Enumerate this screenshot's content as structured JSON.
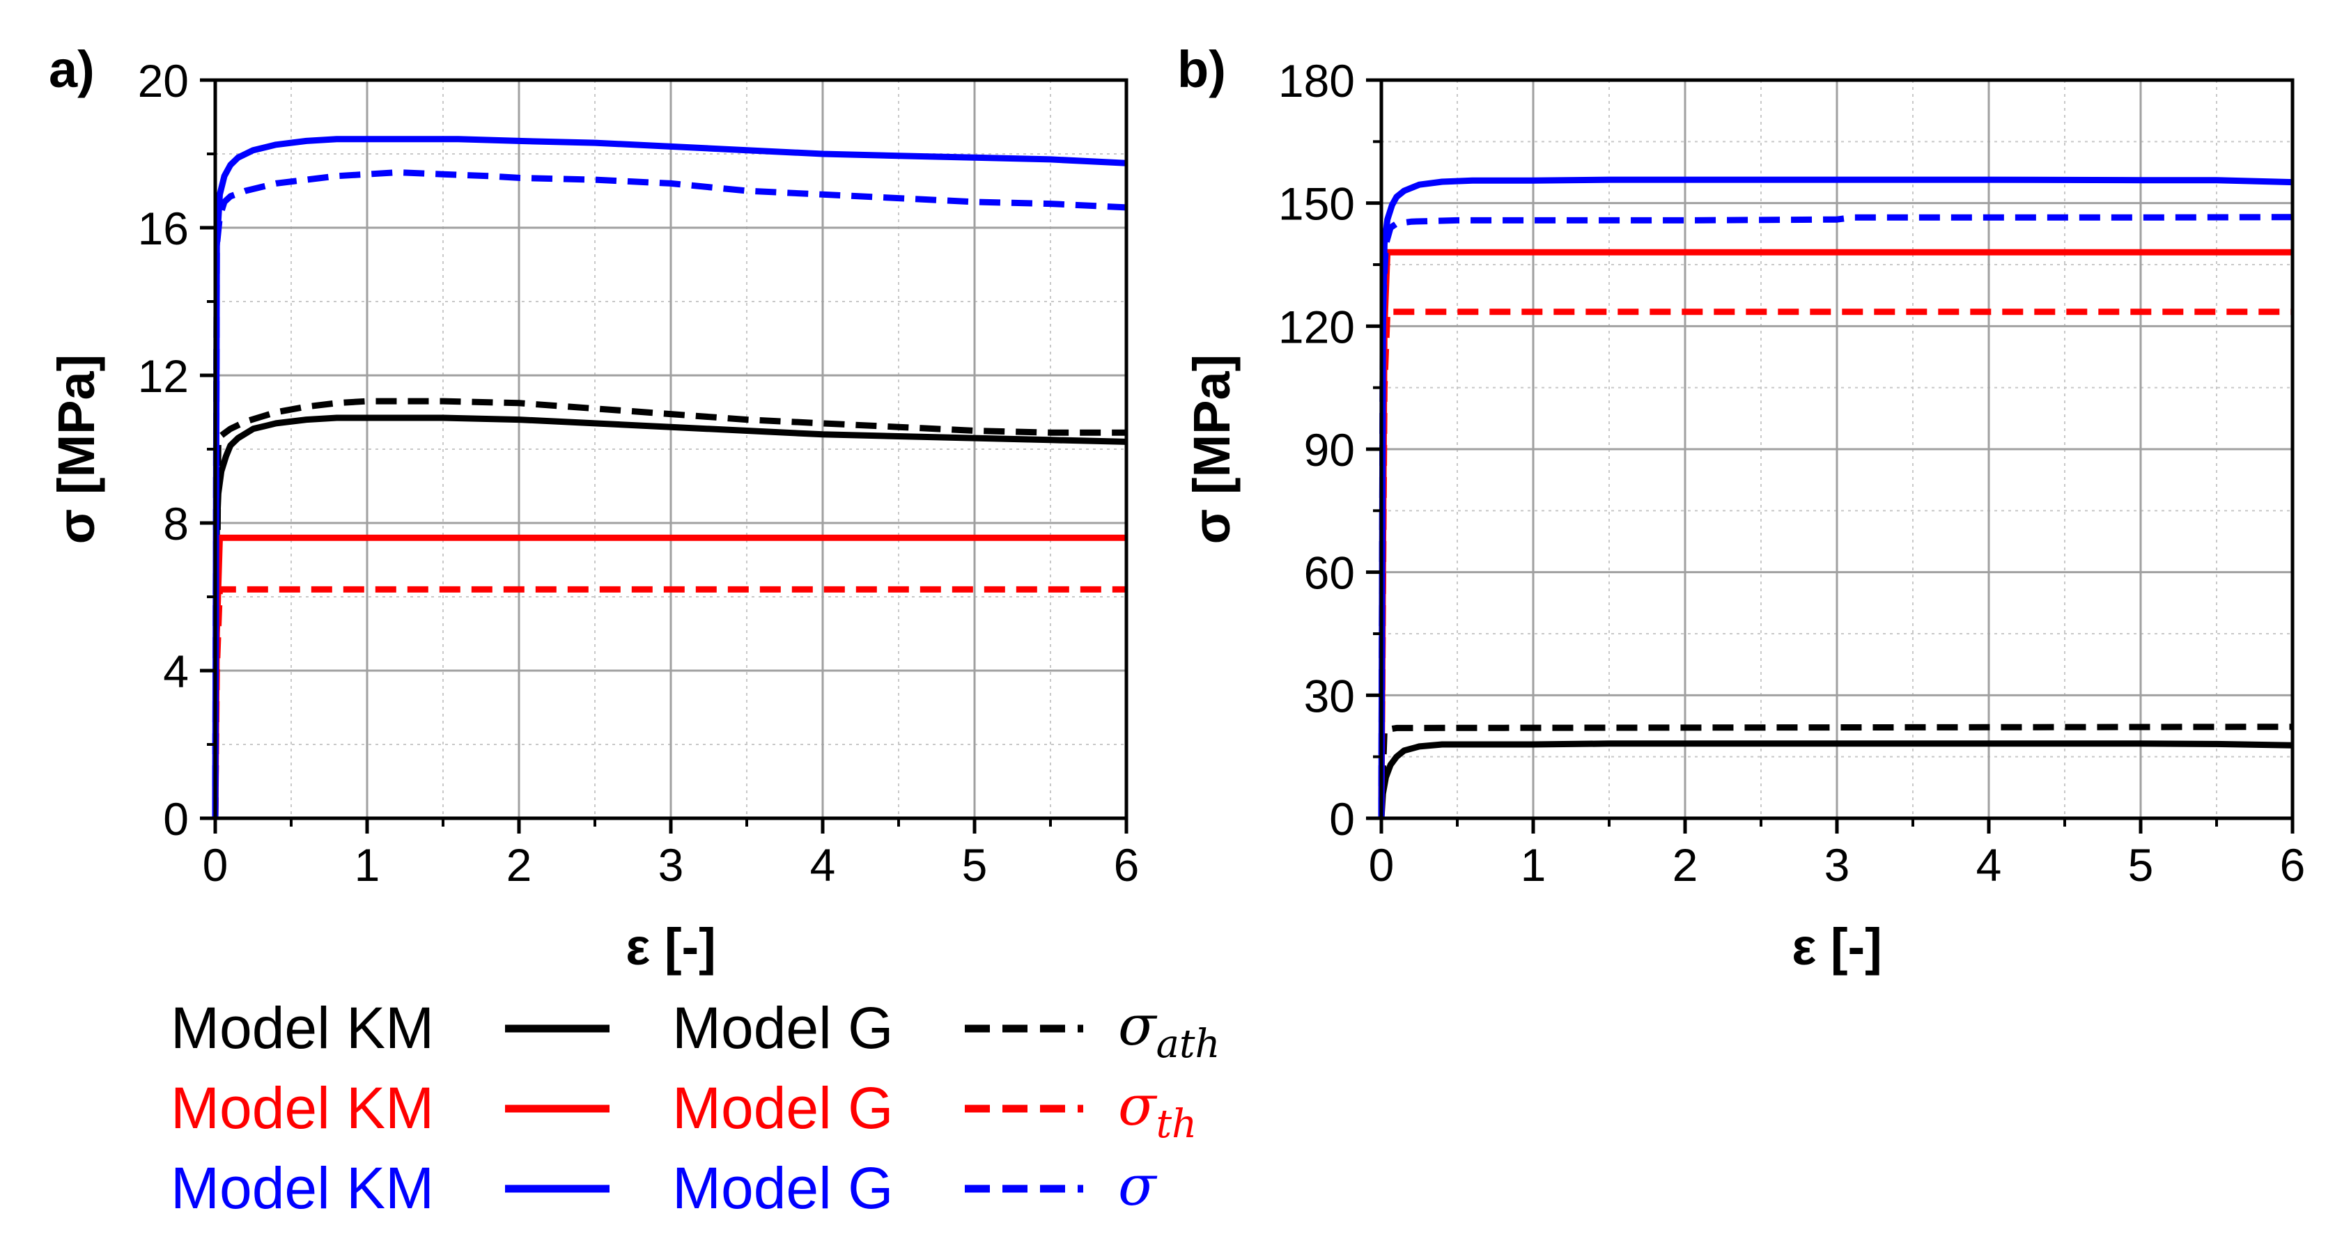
{
  "chart_data": [
    {
      "type": "line",
      "panel_label": "a)",
      "xlabel": "ε [-]",
      "ylabel": "σ [MPa]",
      "xlim": [
        0,
        6
      ],
      "ylim": [
        0,
        20
      ],
      "xticks": [
        "0",
        "1",
        "2",
        "3",
        "4",
        "5",
        "6"
      ],
      "yticks": [
        "0",
        "4",
        "8",
        "12",
        "16",
        "20"
      ],
      "xtick_values": [
        0,
        1,
        2,
        3,
        4,
        5,
        6
      ],
      "ytick_values": [
        0,
        4,
        8,
        12,
        16,
        20
      ],
      "grid": true,
      "series": [
        {
          "name": "Model KM σ_ath",
          "color": "#000000",
          "style": "solid",
          "x": [
            0,
            0.01,
            0.02,
            0.04,
            0.07,
            0.1,
            0.15,
            0.25,
            0.4,
            0.6,
            0.8,
            1.0,
            1.5,
            2.0,
            2.5,
            3.0,
            3.5,
            4.0,
            4.5,
            5.0,
            5.5,
            6.0
          ],
          "y": [
            0,
            7.8,
            8.8,
            9.4,
            9.8,
            10.1,
            10.3,
            10.55,
            10.7,
            10.8,
            10.85,
            10.85,
            10.85,
            10.8,
            10.7,
            10.6,
            10.5,
            10.4,
            10.35,
            10.3,
            10.25,
            10.2
          ]
        },
        {
          "name": "Model G σ_ath",
          "color": "#000000",
          "style": "dashed",
          "x": [
            0,
            0.02,
            0.05,
            0.1,
            0.2,
            0.4,
            0.6,
            0.8,
            1.0,
            1.5,
            2.0,
            2.5,
            3.0,
            3.5,
            4.0,
            4.5,
            5.0,
            5.5,
            6.0
          ],
          "y": [
            0,
            10.3,
            10.4,
            10.55,
            10.75,
            11.0,
            11.15,
            11.25,
            11.3,
            11.3,
            11.25,
            11.1,
            10.95,
            10.8,
            10.7,
            10.6,
            10.5,
            10.45,
            10.45
          ]
        },
        {
          "name": "Model KM σ_th",
          "color": "#ff0000",
          "style": "solid",
          "x": [
            0,
            0.01,
            0.03,
            6.0
          ],
          "y": [
            0,
            5.0,
            7.6,
            7.6
          ]
        },
        {
          "name": "Model G σ_th",
          "color": "#ff0000",
          "style": "dashed",
          "x": [
            0,
            0.01,
            0.03,
            6.0
          ],
          "y": [
            0,
            4.0,
            6.2,
            6.2
          ]
        },
        {
          "name": "Model KM σ",
          "color": "#0000ff",
          "style": "solid",
          "x": [
            0,
            0.01,
            0.03,
            0.06,
            0.1,
            0.15,
            0.25,
            0.4,
            0.6,
            0.8,
            1.0,
            1.3,
            1.6,
            2.0,
            2.5,
            3.0,
            3.5,
            4.0,
            4.5,
            5.0,
            5.5,
            6.0
          ],
          "y": [
            0,
            15.5,
            16.9,
            17.4,
            17.7,
            17.9,
            18.1,
            18.25,
            18.35,
            18.4,
            18.4,
            18.4,
            18.4,
            18.35,
            18.3,
            18.2,
            18.1,
            18.0,
            17.95,
            17.9,
            17.85,
            17.75
          ]
        },
        {
          "name": "Model G σ",
          "color": "#0000ff",
          "style": "dashed",
          "x": [
            0,
            0.01,
            0.03,
            0.06,
            0.1,
            0.2,
            0.4,
            0.6,
            0.8,
            1.0,
            1.2,
            1.5,
            1.8,
            2.0,
            2.5,
            3.0,
            3.5,
            4.0,
            4.5,
            5.0,
            5.5,
            6.0
          ],
          "y": [
            0,
            15.5,
            16.3,
            16.7,
            16.85,
            17.0,
            17.2,
            17.3,
            17.4,
            17.45,
            17.5,
            17.45,
            17.4,
            17.35,
            17.3,
            17.2,
            17.0,
            16.9,
            16.8,
            16.7,
            16.65,
            16.55
          ]
        }
      ]
    },
    {
      "type": "line",
      "panel_label": "b)",
      "xlabel": "ε [-]",
      "ylabel": "σ [MPa]",
      "xlim": [
        0,
        6
      ],
      "ylim": [
        0,
        180
      ],
      "xticks": [
        "0",
        "1",
        "2",
        "3",
        "4",
        "5",
        "6"
      ],
      "yticks": [
        "0",
        "30",
        "60",
        "90",
        "120",
        "150",
        "180"
      ],
      "xtick_values": [
        0,
        1,
        2,
        3,
        4,
        5,
        6
      ],
      "ytick_values": [
        0,
        30,
        60,
        90,
        120,
        150,
        180
      ],
      "grid": true,
      "series": [
        {
          "name": "Model KM σ_ath",
          "color": "#000000",
          "style": "solid",
          "x": [
            0,
            0.01,
            0.03,
            0.06,
            0.1,
            0.15,
            0.25,
            0.4,
            0.6,
            1.0,
            1.5,
            2.0,
            3.0,
            4.0,
            5.0,
            5.5,
            6.0
          ],
          "y": [
            0,
            6,
            10,
            13,
            15,
            16.5,
            17.5,
            18,
            18,
            18,
            18.2,
            18.2,
            18.2,
            18.2,
            18.2,
            18.1,
            17.8
          ]
        },
        {
          "name": "Model G σ_ath",
          "color": "#000000",
          "style": "dashed",
          "x": [
            0,
            0.02,
            0.1,
            6.0
          ],
          "y": [
            0,
            21.5,
            22,
            22.3
          ]
        },
        {
          "name": "Model KM σ_th",
          "color": "#ff0000",
          "style": "solid",
          "x": [
            0,
            0.02,
            0.04,
            6.0
          ],
          "y": [
            0,
            120,
            138,
            138
          ]
        },
        {
          "name": "Model G σ_th",
          "color": "#ff0000",
          "style": "dashed",
          "x": [
            0,
            0.02,
            0.04,
            6.0
          ],
          "y": [
            0,
            105,
            123.5,
            123.5
          ]
        },
        {
          "name": "Model KM σ",
          "color": "#0000ff",
          "style": "solid",
          "x": [
            0,
            0.01,
            0.02,
            0.04,
            0.07,
            0.1,
            0.15,
            0.25,
            0.4,
            0.6,
            1.0,
            1.5,
            2.0,
            3.0,
            4.0,
            5.0,
            5.5,
            6.0
          ],
          "y": [
            0,
            120,
            140,
            146,
            149.5,
            151.5,
            153,
            154.5,
            155.2,
            155.5,
            155.5,
            155.7,
            155.7,
            155.7,
            155.7,
            155.6,
            155.6,
            155.1
          ]
        },
        {
          "name": "Model G σ",
          "color": "#0000ff",
          "style": "dashed",
          "x": [
            0,
            0.01,
            0.03,
            0.06,
            0.1,
            0.2,
            0.5,
            1.0,
            2.0,
            3.0,
            3.1,
            4.0,
            5.0,
            6.0
          ],
          "y": [
            0,
            125,
            140,
            144,
            145,
            145.5,
            145.8,
            145.8,
            145.8,
            146,
            146.5,
            146.5,
            146.5,
            146.6
          ]
        }
      ]
    }
  ],
  "legend": {
    "rows": [
      {
        "km_label": "Model KM",
        "g_label": "Model G",
        "symbol": "σ",
        "subscript": "ath",
        "color": "#000000"
      },
      {
        "km_label": "Model KM",
        "g_label": "Model G",
        "symbol": "σ",
        "subscript": "th",
        "color": "#ff0000"
      },
      {
        "km_label": "Model KM",
        "g_label": "Model G",
        "symbol": "σ",
        "subscript": "",
        "color": "#0000ff"
      }
    ]
  }
}
